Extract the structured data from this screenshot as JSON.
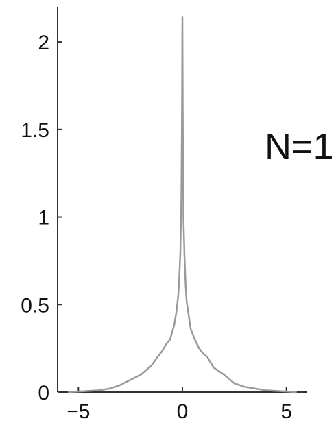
{
  "chart_data": {
    "type": "line",
    "title": "",
    "xlabel": "",
    "ylabel": "",
    "xlim": [
      -6,
      6
    ],
    "ylim": [
      0,
      2.2
    ],
    "x_ticks": [
      -5,
      0,
      5
    ],
    "x_tick_labels": [
      "−5",
      "0",
      "5"
    ],
    "y_ticks": [
      0,
      0.5,
      1,
      1.5,
      2
    ],
    "y_tick_labels": [
      "0",
      "0.5",
      "1",
      "1.5",
      "2"
    ],
    "grid": false,
    "annotation": "N=1",
    "line_color": "#9a9a9a",
    "axis_color": "#333333",
    "series": [
      {
        "x": [
          -5.5,
          -4,
          -3.5,
          -3,
          -2.5,
          -2,
          -1.5,
          -1.2,
          -1,
          -0.8,
          -0.6,
          -0.4,
          -0.3,
          -0.2,
          -0.15,
          -0.1,
          -0.05,
          -0.02,
          0,
          0.02,
          0.05,
          0.1,
          0.15,
          0.2,
          0.3,
          0.4,
          0.6,
          0.8,
          1,
          1.2,
          1.5,
          2,
          2.5,
          3,
          3.5,
          4,
          5.5
        ],
        "y": [
          0,
          0.01,
          0.02,
          0.04,
          0.07,
          0.1,
          0.15,
          0.2,
          0.23,
          0.27,
          0.3,
          0.38,
          0.45,
          0.55,
          0.65,
          0.8,
          1.1,
          1.6,
          2.14,
          1.55,
          1.0,
          0.78,
          0.62,
          0.52,
          0.44,
          0.36,
          0.3,
          0.25,
          0.22,
          0.2,
          0.14,
          0.1,
          0.05,
          0.03,
          0.02,
          0.01,
          0
        ]
      }
    ]
  }
}
